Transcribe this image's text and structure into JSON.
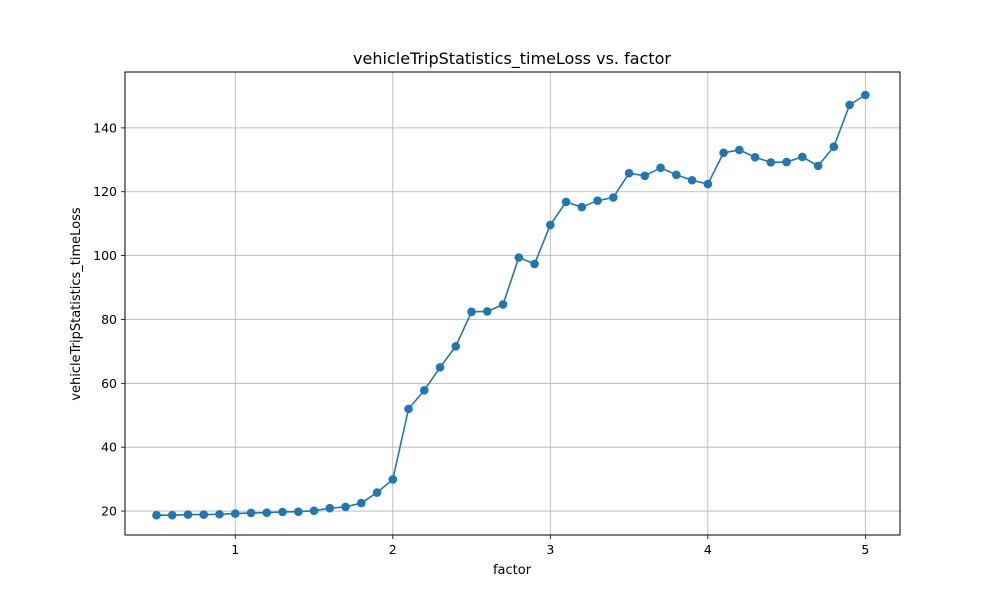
{
  "chart_data": {
    "type": "line",
    "title": "vehicleTripStatistics_timeLoss vs. factor",
    "xlabel": "factor",
    "ylabel": "vehicleTripStatistics_timeLoss",
    "xlim": [
      0.3,
      5.22
    ],
    "ylim": [
      12.5,
      157.5
    ],
    "xticks": [
      1,
      2,
      3,
      4,
      5
    ],
    "yticks": [
      20,
      40,
      60,
      80,
      100,
      120,
      140
    ],
    "grid": true,
    "colors": {
      "series": "#1f77b4",
      "grid": "#b0b0b0",
      "axes": "#000000"
    },
    "series": [
      {
        "marker": "circle",
        "x": [
          0.5,
          0.6,
          0.7,
          0.8,
          0.9,
          1.0,
          1.1,
          1.2,
          1.3,
          1.4,
          1.5,
          1.6,
          1.7,
          1.8,
          1.9,
          2.0,
          2.1,
          2.2,
          2.3,
          2.4,
          2.5,
          2.6,
          2.7,
          2.8,
          2.9,
          3.0,
          3.1,
          3.2,
          3.3,
          3.4,
          3.5,
          3.6,
          3.7,
          3.8,
          3.9,
          4.0,
          4.1,
          4.2,
          4.3,
          4.4,
          4.5,
          4.6,
          4.7,
          4.8,
          4.9,
          5.0
        ],
        "values": [
          18.7,
          18.7,
          18.9,
          18.9,
          19.0,
          19.2,
          19.4,
          19.5,
          19.7,
          19.8,
          20.1,
          20.9,
          21.3,
          22.5,
          25.8,
          29.9,
          52.0,
          57.8,
          65.0,
          71.6,
          82.4,
          82.5,
          84.7,
          99.4,
          97.4,
          109.6,
          116.8,
          115.2,
          117.2,
          118.2,
          125.8,
          125.0,
          127.5,
          125.3,
          123.6,
          122.4,
          132.2,
          133.1,
          130.8,
          129.2,
          129.3,
          130.9,
          128.1,
          134.1,
          147.2,
          150.3
        ]
      }
    ]
  }
}
